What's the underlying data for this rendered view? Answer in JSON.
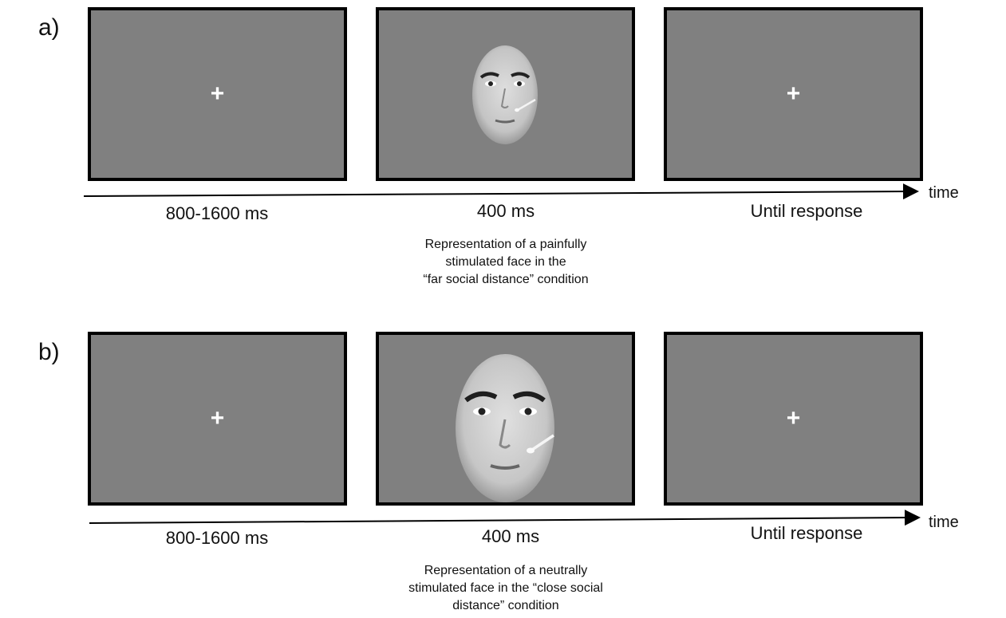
{
  "panels": [
    {
      "label": "a)",
      "durations": [
        "800-1600 ms",
        "400 ms",
        "Until response"
      ],
      "time_label": "time",
      "caption_lines": [
        "Representation of a painfully",
        "stimulated face in the",
        "“far social distance” condition"
      ],
      "fixation": "+"
    },
    {
      "label": "b)",
      "durations": [
        "800-1600 ms",
        "400 ms",
        "Until response"
      ],
      "time_label": "time",
      "caption_lines": [
        "Representation of a neutrally",
        "stimulated face in the “close social",
        "distance” condition"
      ],
      "fixation": "+"
    }
  ],
  "colors": {
    "screen": "#808080",
    "border": "#000000",
    "fixation": "#ffffff"
  }
}
